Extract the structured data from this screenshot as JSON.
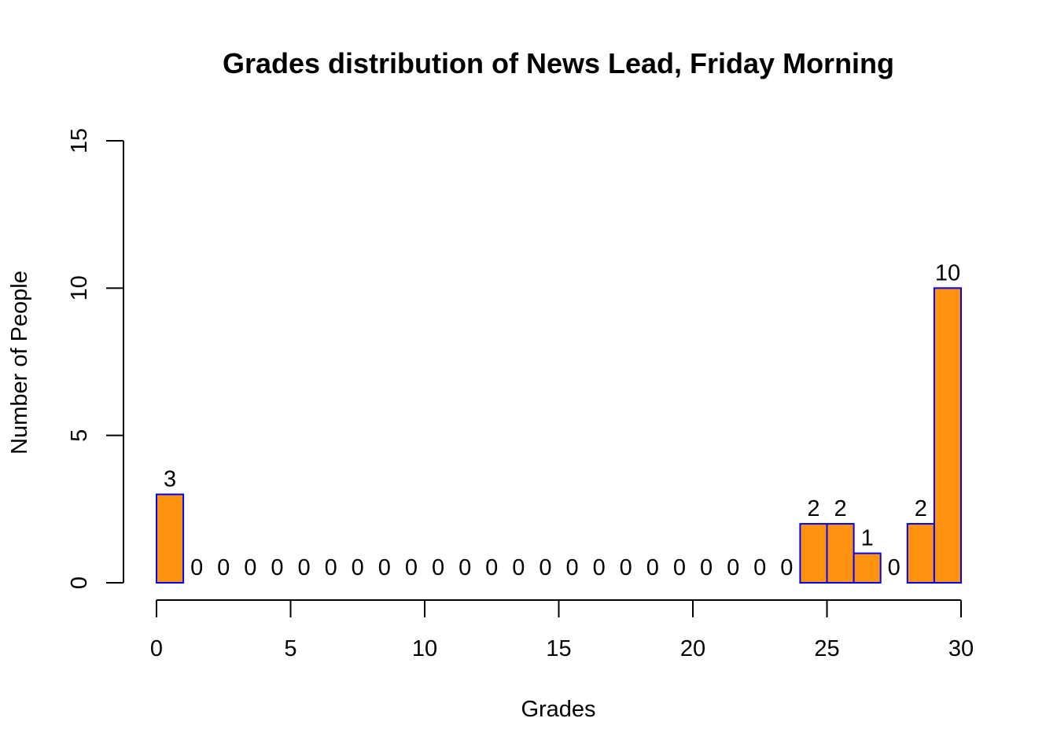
{
  "chart_data": {
    "type": "bar",
    "title": "Grades distribution of News Lead, Friday Morning",
    "xlabel": "Grades",
    "ylabel": "Number of People",
    "bin_edges": [
      0,
      1,
      2,
      3,
      4,
      5,
      6,
      7,
      8,
      9,
      10,
      11,
      12,
      13,
      14,
      15,
      16,
      17,
      18,
      19,
      20,
      21,
      22,
      23,
      24,
      25,
      26,
      27,
      28,
      29,
      30
    ],
    "values": [
      3,
      0,
      0,
      0,
      0,
      0,
      0,
      0,
      0,
      0,
      0,
      0,
      0,
      0,
      0,
      0,
      0,
      0,
      0,
      0,
      0,
      0,
      0,
      0,
      2,
      2,
      1,
      0,
      2,
      10
    ],
    "data_labels": [
      "3",
      "0",
      "0",
      "0",
      "0",
      "0",
      "0",
      "0",
      "0",
      "0",
      "0",
      "0",
      "0",
      "0",
      "0",
      "0",
      "0",
      "0",
      "0",
      "0",
      "0",
      "0",
      "0",
      "0",
      "2",
      "2",
      "1",
      "0",
      "2",
      "10"
    ],
    "xlim": [
      0,
      30
    ],
    "ylim": [
      0,
      15
    ],
    "x_ticks": [
      0,
      5,
      10,
      15,
      20,
      25,
      30
    ],
    "x_tick_labels": [
      "0",
      "5",
      "10",
      "15",
      "20",
      "25",
      "30"
    ],
    "y_ticks": [
      0,
      5,
      10,
      15
    ],
    "y_tick_labels": [
      "0",
      "5",
      "10",
      "15"
    ],
    "grid": false,
    "bar_fill_color": "#FF920F",
    "bar_border_color": "#0000FF"
  }
}
